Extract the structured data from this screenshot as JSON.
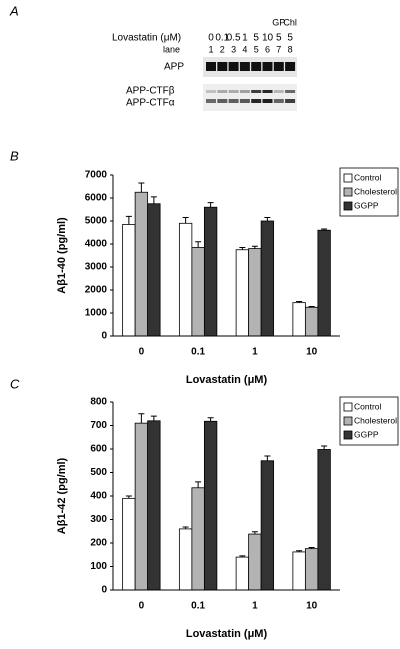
{
  "panel_a": {
    "label": "A",
    "treatment_label": "Lovastatin (μM)",
    "lane_label": "lane",
    "lanes": [
      {
        "number": "1",
        "concentration": "0"
      },
      {
        "number": "2",
        "concentration": "0.1"
      },
      {
        "number": "3",
        "concentration": "0.5"
      },
      {
        "number": "4",
        "concentration": "1"
      },
      {
        "number": "5",
        "concentration": "5"
      },
      {
        "number": "6",
        "concentration": "10"
      },
      {
        "number": "7",
        "concentration": "5",
        "treatment": "GP"
      },
      {
        "number": "8",
        "concentration": "5",
        "treatment": "Chl"
      }
    ],
    "blots": [
      "APP",
      "APP-CTFβ",
      "APP-CTFα"
    ]
  },
  "chart_data": [
    {
      "type": "bar",
      "panel_label": "B",
      "y_label": "Aβ1-40 (pg/ml)",
      "x_label": "Lovastatin (μM)",
      "categories": [
        "0",
        "0.1",
        "1",
        "10"
      ],
      "series": [
        {
          "name": "Control",
          "color": "#ffffff",
          "values": [
            4850,
            4900,
            3750,
            1450
          ],
          "errors": [
            350,
            250,
            100,
            50
          ]
        },
        {
          "name": "Cholesterol",
          "color": "#b3b3b3",
          "values": [
            6250,
            3850,
            3800,
            1250
          ],
          "errors": [
            400,
            250,
            100,
            30
          ]
        },
        {
          "name": "GGPP",
          "color": "#333333",
          "values": [
            5750,
            5600,
            5000,
            4600
          ],
          "errors": [
            300,
            200,
            150,
            50
          ]
        }
      ],
      "ylim": [
        0,
        7000
      ],
      "yticks": [
        0,
        1000,
        2000,
        3000,
        4000,
        5000,
        6000,
        7000
      ],
      "grid": false,
      "legend": "right"
    },
    {
      "type": "bar",
      "panel_label": "C",
      "y_label": "Aβ1-42 (pg/ml)",
      "x_label": "Lovastatin (μM)",
      "categories": [
        "0",
        "0.1",
        "1",
        "10"
      ],
      "series": [
        {
          "name": "Control",
          "color": "#ffffff",
          "values": [
            390,
            260,
            140,
            162
          ],
          "errors": [
            10,
            8,
            5,
            5
          ]
        },
        {
          "name": "Cholesterol",
          "color": "#b3b3b3",
          "values": [
            710,
            435,
            238,
            176
          ],
          "errors": [
            40,
            25,
            10,
            5
          ]
        },
        {
          "name": "GGPP",
          "color": "#333333",
          "values": [
            720,
            718,
            550,
            598
          ],
          "errors": [
            20,
            15,
            20,
            15
          ]
        }
      ],
      "ylim": [
        0,
        800
      ],
      "yticks": [
        0,
        100,
        200,
        300,
        400,
        500,
        600,
        700,
        800
      ],
      "grid": false,
      "legend": "right"
    }
  ]
}
